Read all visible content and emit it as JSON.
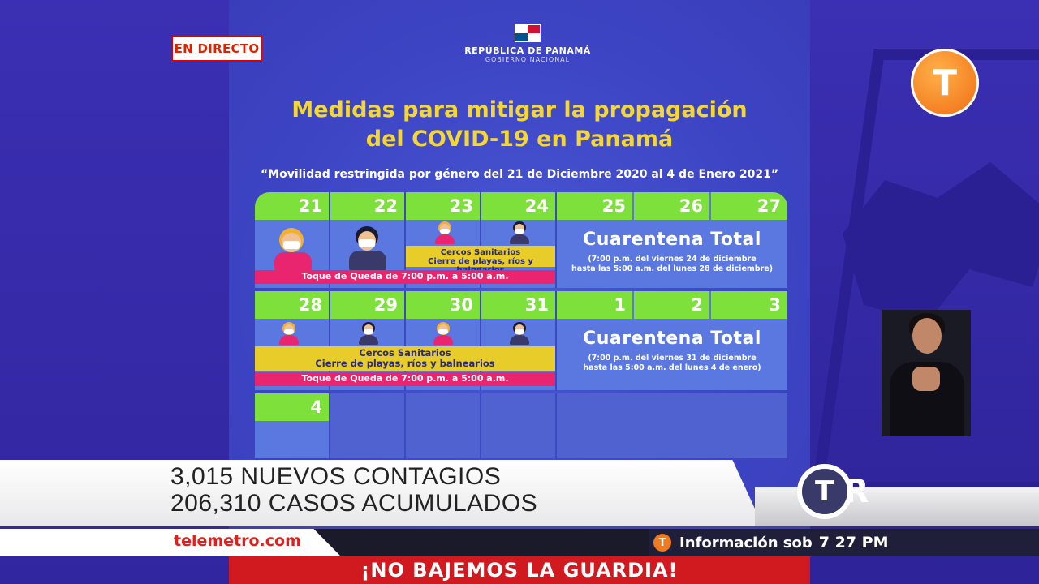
{
  "live_badge": "EN DIRECTO",
  "government": {
    "name": "REPÚBLICA DE PANAMÁ",
    "sub": "GOBIERNO NACIONAL"
  },
  "title": {
    "line1": "Medidas para mitigar la propagación",
    "line2": "del COVID-19 en Panamá"
  },
  "subtitle": "“Movilidad restringida por género del 21 de Diciembre 2020 al 4 de Enero 2021”",
  "calendar": {
    "week1": {
      "days": [
        "21",
        "22",
        "23",
        "24",
        "25",
        "26",
        "27"
      ],
      "cercos": {
        "line1": "Cercos Sanitarios",
        "line2": "Cierre de playas, ríos y balnearios"
      },
      "toque": "Toque de Queda de 7:00 p.m. a 5:00 a.m.",
      "cuarentena": {
        "title": "Cuarentena Total",
        "line1": "(7:00 p.m. del viernes 24 de diciembre",
        "line2": "hasta las 5:00 a.m. del lunes 28 de diciembre)"
      }
    },
    "week2": {
      "days": [
        "28",
        "29",
        "30",
        "31",
        "1",
        "2",
        "3"
      ],
      "cercos": {
        "line1": "Cercos Sanitarios",
        "line2": "Cierre de playas, ríos y balnearios"
      },
      "toque": "Toque de Queda de 7:00 p.m. a 5:00 a.m.",
      "cuarentena": {
        "title": "Cuarentena Total",
        "line1": "(7:00 p.m. del viernes 31 de diciembre",
        "line2": "hasta las 5:00 a.m. del lunes 4 de enero)"
      }
    },
    "week3": {
      "days": [
        "4"
      ]
    }
  },
  "headline": {
    "line1": "3,015 NUEVOS CONTAGIOS",
    "line2": "206,310 CASOS ACUMULADOS"
  },
  "website": "telemetro.com",
  "info_ticker": {
    "text": "Información sob",
    "time": "7 27 PM"
  },
  "slogan": "¡NO BAJEMOS LA GUARDIA!",
  "colors": {
    "accent_green": "#7ee03a",
    "yellow": "#e8cc2a",
    "pink": "#e8256e",
    "brand_orange": "#ef6a10",
    "brand_red": "#d11920"
  },
  "icons": [
    "telemetro-logo-icon",
    "tr-logo-icon",
    "panama-flag-icon",
    "telemetro-small-icon"
  ]
}
